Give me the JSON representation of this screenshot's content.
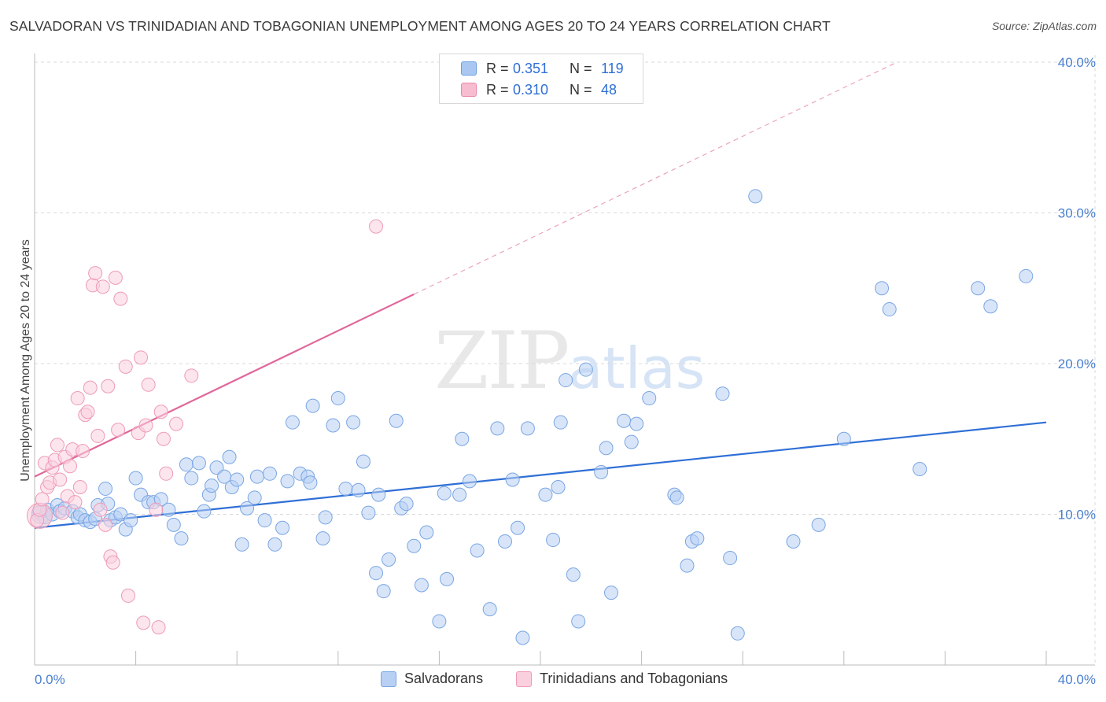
{
  "title": "SALVADORAN VS TRINIDADIAN AND TOBAGONIAN UNEMPLOYMENT AMONG AGES 20 TO 24 YEARS CORRELATION CHART",
  "source": "Source: ZipAtlas.com",
  "watermark": {
    "zip": "ZIP",
    "atlas": "atlas"
  },
  "legend": {
    "rows": [
      {
        "r_label": "R =",
        "r_value": "0.351",
        "n_label": "N =",
        "n_value": "119",
        "color": "#a9c7f0",
        "border": "#6f9fe0"
      },
      {
        "r_label": "R =",
        "r_value": "0.310",
        "n_label": "N =",
        "n_value": "48",
        "color": "#f7bcd0",
        "border": "#e88aab"
      }
    ]
  },
  "bottom_legend": [
    {
      "label": "Salvadorans",
      "color": "#b8d0f4",
      "border": "#7aa6e3"
    },
    {
      "label": "Trinidadians and Tobagonians",
      "color": "#fad0de",
      "border": "#ee9bb8"
    }
  ],
  "chart_data": {
    "type": "scatter",
    "title": "SALVADORAN VS TRINIDADIAN AND TOBAGONIAN UNEMPLOYMENT AMONG AGES 20 TO 24 YEARS CORRELATION CHART",
    "xlabel": "",
    "ylabel": "Unemployment Among Ages 20 to 24 years",
    "xlim": [
      0,
      40
    ],
    "ylim": [
      0,
      40
    ],
    "x_tick_labels": [
      "0.0%",
      "40.0%"
    ],
    "y_ticks": [
      10,
      20,
      30,
      40
    ],
    "y_tick_labels": [
      "10.0%",
      "20.0%",
      "30.0%",
      "40.0%"
    ],
    "grid": true,
    "series": [
      {
        "name": "Salvadorans",
        "color": "#7aa6e3",
        "fill": "#b8d0f4",
        "trend": {
          "x0": 0,
          "y0": 9.1,
          "x1": 40,
          "y1": 16.1,
          "color": "#2f6fd6"
        },
        "points": [
          [
            0.2,
            10.1
          ],
          [
            0.4,
            9.8
          ],
          [
            0.5,
            10.3
          ],
          [
            0.7,
            10.0
          ],
          [
            0.9,
            10.6
          ],
          [
            1.0,
            10.2
          ],
          [
            1.2,
            10.4
          ],
          [
            1.5,
            10.2
          ],
          [
            1.7,
            9.8
          ],
          [
            1.8,
            10.0
          ],
          [
            2.0,
            9.6
          ],
          [
            2.2,
            9.5
          ],
          [
            2.4,
            9.7
          ],
          [
            2.5,
            10.6
          ],
          [
            2.8,
            11.7
          ],
          [
            2.9,
            10.7
          ],
          [
            3.0,
            9.6
          ],
          [
            3.2,
            9.8
          ],
          [
            3.4,
            10.0
          ],
          [
            3.6,
            9.0
          ],
          [
            3.8,
            9.6
          ],
          [
            4.0,
            12.4
          ],
          [
            4.2,
            11.3
          ],
          [
            4.5,
            10.8
          ],
          [
            4.7,
            10.8
          ],
          [
            5.0,
            11.0
          ],
          [
            5.3,
            10.3
          ],
          [
            5.5,
            9.3
          ],
          [
            5.8,
            8.4
          ],
          [
            6.0,
            13.3
          ],
          [
            6.2,
            12.4
          ],
          [
            6.5,
            13.4
          ],
          [
            6.7,
            10.2
          ],
          [
            6.9,
            11.3
          ],
          [
            7.0,
            11.9
          ],
          [
            7.2,
            13.1
          ],
          [
            7.5,
            12.5
          ],
          [
            7.7,
            13.8
          ],
          [
            7.8,
            11.8
          ],
          [
            8.0,
            12.3
          ],
          [
            8.2,
            8.0
          ],
          [
            8.4,
            10.4
          ],
          [
            8.7,
            11.1
          ],
          [
            8.8,
            12.5
          ],
          [
            9.1,
            9.6
          ],
          [
            9.3,
            12.7
          ],
          [
            9.5,
            8.0
          ],
          [
            9.8,
            9.1
          ],
          [
            10.0,
            12.2
          ],
          [
            10.2,
            16.1
          ],
          [
            10.5,
            12.7
          ],
          [
            10.8,
            12.5
          ],
          [
            10.9,
            12.1
          ],
          [
            11.0,
            17.2
          ],
          [
            11.4,
            8.4
          ],
          [
            11.5,
            9.8
          ],
          [
            11.8,
            15.9
          ],
          [
            12.0,
            17.7
          ],
          [
            12.3,
            11.7
          ],
          [
            12.6,
            16.1
          ],
          [
            12.8,
            11.6
          ],
          [
            13.0,
            13.5
          ],
          [
            13.2,
            10.1
          ],
          [
            13.5,
            6.1
          ],
          [
            13.6,
            11.3
          ],
          [
            13.8,
            4.9
          ],
          [
            14.0,
            7.0
          ],
          [
            14.3,
            16.2
          ],
          [
            14.5,
            10.4
          ],
          [
            14.7,
            10.7
          ],
          [
            15.0,
            7.9
          ],
          [
            15.3,
            5.3
          ],
          [
            15.5,
            8.8
          ],
          [
            16.0,
            2.9
          ],
          [
            16.2,
            11.4
          ],
          [
            16.3,
            5.7
          ],
          [
            16.8,
            11.3
          ],
          [
            16.9,
            15.0
          ],
          [
            17.2,
            12.2
          ],
          [
            17.5,
            7.6
          ],
          [
            18.0,
            3.7
          ],
          [
            18.3,
            15.7
          ],
          [
            18.6,
            8.2
          ],
          [
            18.9,
            12.3
          ],
          [
            19.1,
            9.1
          ],
          [
            19.3,
            1.8
          ],
          [
            19.5,
            15.7
          ],
          [
            20.2,
            11.3
          ],
          [
            20.5,
            8.3
          ],
          [
            20.7,
            11.8
          ],
          [
            20.8,
            16.1
          ],
          [
            21.0,
            18.9
          ],
          [
            21.3,
            6.0
          ],
          [
            21.5,
            2.9
          ],
          [
            21.8,
            19.6
          ],
          [
            22.4,
            12.8
          ],
          [
            22.6,
            14.4
          ],
          [
            22.8,
            4.8
          ],
          [
            23.3,
            16.2
          ],
          [
            23.6,
            14.8
          ],
          [
            23.8,
            16.0
          ],
          [
            24.3,
            17.7
          ],
          [
            25.3,
            11.3
          ],
          [
            25.4,
            11.1
          ],
          [
            25.8,
            6.6
          ],
          [
            26.0,
            8.2
          ],
          [
            26.2,
            8.4
          ],
          [
            27.2,
            18.0
          ],
          [
            27.5,
            7.1
          ],
          [
            27.8,
            2.1
          ],
          [
            28.5,
            31.1
          ],
          [
            30.0,
            8.2
          ],
          [
            31.0,
            9.3
          ],
          [
            32.0,
            15.0
          ],
          [
            33.5,
            25.0
          ],
          [
            33.8,
            23.6
          ],
          [
            35.0,
            13.0
          ],
          [
            37.3,
            25.0
          ],
          [
            37.8,
            23.8
          ],
          [
            39.2,
            25.8
          ]
        ]
      },
      {
        "name": "Trinidadians and Tobagonians",
        "color": "#ee9bb8",
        "fill": "#fad0de",
        "trend": {
          "x0": 0,
          "y0": 12.5,
          "x1": 15.0,
          "y1": 24.6,
          "color": "#e0689a"
        },
        "trend_dashed": {
          "x0": 15.0,
          "y0": 24.6,
          "x1": 34.1,
          "y1": 40.0
        },
        "points": [
          [
            0.1,
            9.6
          ],
          [
            0.2,
            10.3
          ],
          [
            0.3,
            11.0
          ],
          [
            0.4,
            13.4
          ],
          [
            0.5,
            11.8
          ],
          [
            0.6,
            12.1
          ],
          [
            0.7,
            13.1
          ],
          [
            0.8,
            13.6
          ],
          [
            0.9,
            14.6
          ],
          [
            1.0,
            12.3
          ],
          [
            1.1,
            10.1
          ],
          [
            1.2,
            13.8
          ],
          [
            1.3,
            11.2
          ],
          [
            1.4,
            13.2
          ],
          [
            1.5,
            14.3
          ],
          [
            1.6,
            10.8
          ],
          [
            1.7,
            17.7
          ],
          [
            1.8,
            11.8
          ],
          [
            1.9,
            14.2
          ],
          [
            2.0,
            16.6
          ],
          [
            2.1,
            16.8
          ],
          [
            2.2,
            18.4
          ],
          [
            2.3,
            25.2
          ],
          [
            2.4,
            26.0
          ],
          [
            2.5,
            15.2
          ],
          [
            2.6,
            10.3
          ],
          [
            2.7,
            25.1
          ],
          [
            2.8,
            9.3
          ],
          [
            2.9,
            18.5
          ],
          [
            3.0,
            7.2
          ],
          [
            3.1,
            6.8
          ],
          [
            3.2,
            25.7
          ],
          [
            3.3,
            15.6
          ],
          [
            3.4,
            24.3
          ],
          [
            3.6,
            19.8
          ],
          [
            3.7,
            4.6
          ],
          [
            4.1,
            15.4
          ],
          [
            4.2,
            20.4
          ],
          [
            4.3,
            2.8
          ],
          [
            4.4,
            15.9
          ],
          [
            4.5,
            18.6
          ],
          [
            4.8,
            10.3
          ],
          [
            4.9,
            2.5
          ],
          [
            5.0,
            16.8
          ],
          [
            5.1,
            15.0
          ],
          [
            5.2,
            12.7
          ],
          [
            5.6,
            16.0
          ],
          [
            6.2,
            19.2
          ],
          [
            13.5,
            29.1
          ]
        ]
      }
    ]
  }
}
